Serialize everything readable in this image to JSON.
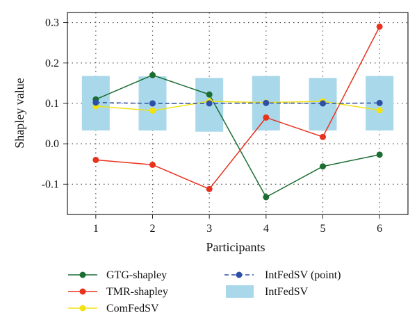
{
  "chart_data": {
    "type": "line",
    "xlabel": "Participants",
    "ylabel": "Shapley value",
    "x": [
      1,
      2,
      3,
      4,
      5,
      6
    ],
    "xlim": [
      0.5,
      6.5
    ],
    "ylim": [
      -0.175,
      0.325
    ],
    "yticks": [
      -0.1,
      0.0,
      0.1,
      0.2,
      0.3
    ],
    "ytick_labels": [
      "-0.1",
      "0.0",
      "0.1",
      "0.2",
      "0.3"
    ],
    "grid": "dotted",
    "legend_position": "bottom",
    "series": [
      {
        "name": "GTG-shapley",
        "type": "line",
        "color": "#1b6e32",
        "values": [
          0.11,
          0.17,
          0.122,
          -0.132,
          -0.056,
          -0.027
        ]
      },
      {
        "name": "TMR-shapley",
        "type": "line",
        "color": "#e8321e",
        "values": [
          -0.04,
          -0.052,
          -0.112,
          0.065,
          0.017,
          0.29
        ]
      },
      {
        "name": "ComFedSV",
        "type": "line",
        "color": "#f2e211",
        "values": [
          0.093,
          0.082,
          0.105,
          0.102,
          0.105,
          0.083
        ]
      },
      {
        "name": "IntFedSV (point)",
        "type": "line",
        "style": "dashed",
        "color": "#2e4fa6",
        "values": [
          0.102,
          0.1,
          0.1,
          0.101,
          0.1,
          0.101
        ]
      },
      {
        "name": "IntFedSV",
        "type": "interval",
        "color": "#a8d8ea",
        "low": [
          0.033,
          0.033,
          0.03,
          0.033,
          0.033,
          0.033
        ],
        "high": [
          0.168,
          0.167,
          0.163,
          0.168,
          0.163,
          0.168
        ]
      }
    ]
  }
}
